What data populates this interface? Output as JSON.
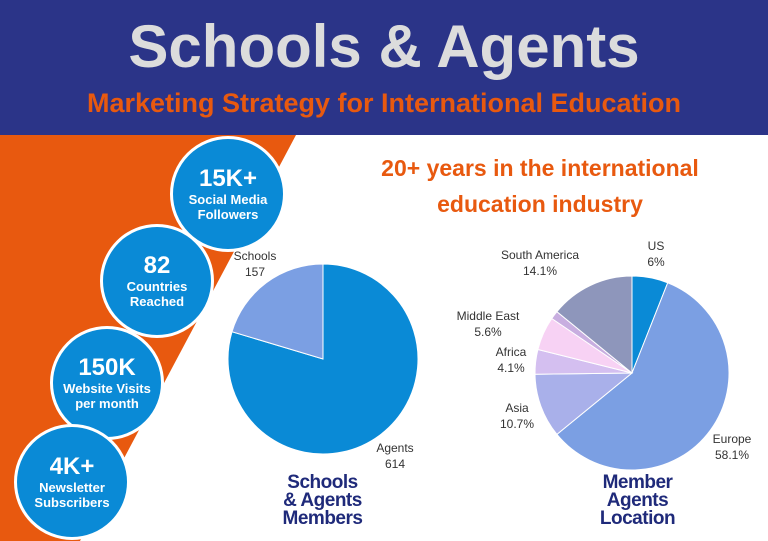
{
  "header": {
    "title": "Schools & Agents",
    "subtitle": "Marketing Strategy for International Education"
  },
  "tagline": {
    "line1": "20+ years in the international",
    "line2": "education industry"
  },
  "stats": [
    {
      "number": "15K+",
      "line1": "Social Media",
      "line2": "Followers"
    },
    {
      "number": "82",
      "line1": "Countries",
      "line2": "Reached"
    },
    {
      "number": "150K",
      "line1": "Website Visits",
      "line2": "per month"
    },
    {
      "number": "4K+",
      "line1": "Newsletter",
      "line2": "Subscribers"
    }
  ],
  "colors": {
    "header_bg": "#2b3488",
    "accent_orange": "#e8590f",
    "stat_blue": "#0a8ad6",
    "title_gray": "#dcdcdc"
  },
  "chart_data": [
    {
      "type": "pie",
      "title_lines": [
        "Schools",
        "& Agents",
        "Members"
      ],
      "slices": [
        {
          "label": "Agents",
          "value": 614,
          "display": "614",
          "color": "#0a8ad6"
        },
        {
          "label": "Schools",
          "value": 157,
          "display": "157",
          "color": "#7b9fe3"
        }
      ]
    },
    {
      "type": "pie",
      "title_lines": [
        "Member",
        "Agents",
        "Location"
      ],
      "slices": [
        {
          "label": "US",
          "value": 6,
          "display": "6%",
          "color": "#0a8ad6"
        },
        {
          "label": "Europe",
          "value": 58.1,
          "display": "58.1%",
          "color": "#7b9fe3"
        },
        {
          "label": "Asia",
          "value": 10.7,
          "display": "10.7%",
          "color": "#a9b0ea"
        },
        {
          "label": "Africa",
          "value": 4.1,
          "display": "4.1%",
          "color": "#d4bff0"
        },
        {
          "label": "Middle East",
          "value": 5.6,
          "display": "5.6%",
          "color": "#f7d2f4"
        },
        {
          "label": "",
          "value": 1.4,
          "display": "",
          "color": "#c8aee0"
        },
        {
          "label": "South America",
          "value": 14.1,
          "display": "14.1%",
          "color": "#8e96bb"
        }
      ]
    }
  ]
}
